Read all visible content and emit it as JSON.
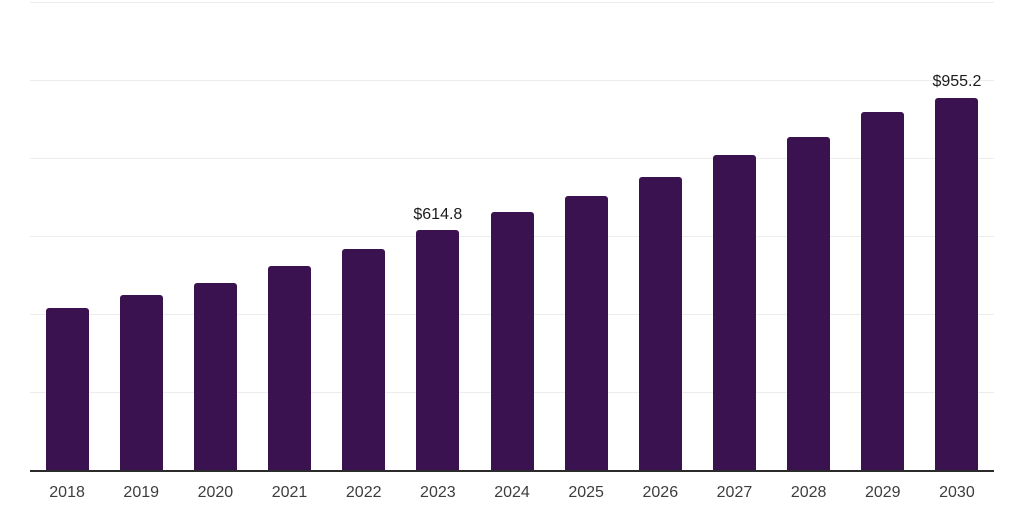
{
  "chart_data": {
    "type": "bar",
    "title": "",
    "xlabel": "",
    "ylabel": "",
    "categories": [
      "2018",
      "2019",
      "2020",
      "2021",
      "2022",
      "2023",
      "2024",
      "2025",
      "2026",
      "2027",
      "2028",
      "2029",
      "2030"
    ],
    "values": [
      416.7,
      449.9,
      480.6,
      524.1,
      567.5,
      614.8,
      663.4,
      703.0,
      752.9,
      807.8,
      855.1,
      919.0,
      955.2
    ],
    "bar_labels": [
      "",
      "",
      "",
      "",
      "",
      "$614.8",
      "",
      "",
      "",
      "",
      "",
      "",
      "$955.2"
    ],
    "ylim": [
      0,
      1200
    ],
    "grid_step": 200,
    "grid": "horizontal",
    "y_tick_labels_visible": false,
    "legend_position": "none",
    "colors": {
      "bar": "#39124F",
      "grid": "#ededed",
      "axis": "#2b2b2b",
      "tick_label": "#3d3d3d",
      "data_label": "#1c1c1c",
      "background": "#ffffff"
    }
  }
}
